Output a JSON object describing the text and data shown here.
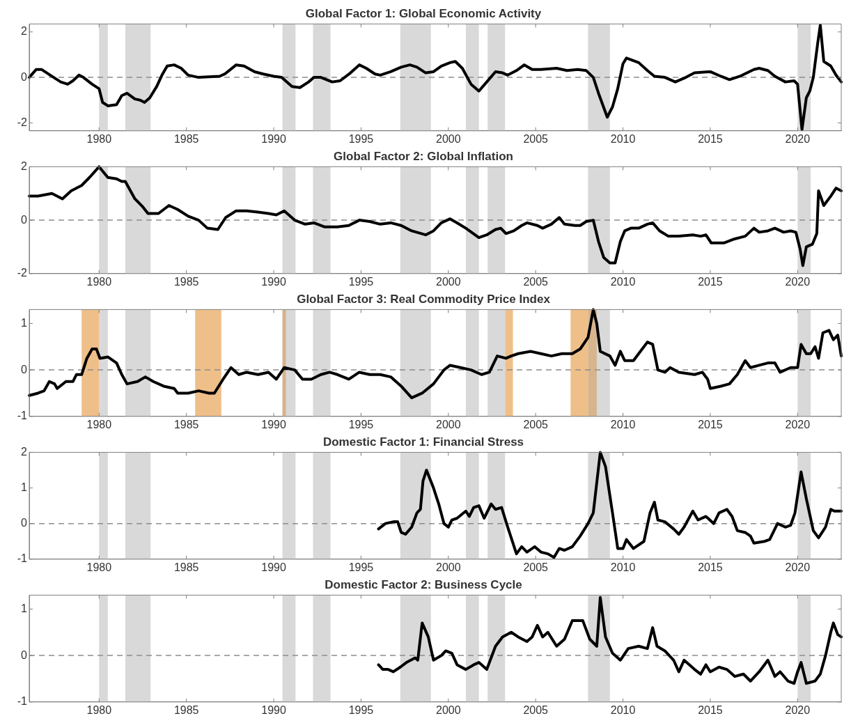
{
  "chart_data": [
    {
      "type": "line",
      "title": "Global Factor 1: Global Economic Activity",
      "xlim": [
        1976,
        2022.5
      ],
      "xticks": [
        1980,
        1985,
        1990,
        1995,
        2000,
        2005,
        2010,
        2015,
        2020
      ],
      "ylim": [
        -2.35,
        2.35
      ],
      "yticks": [
        -2,
        0,
        2
      ],
      "marker": "none",
      "grid": false,
      "bands": [
        {
          "axis": "x",
          "from": 1980.0,
          "to": 1980.5,
          "color": "#d9d9d9"
        },
        {
          "axis": "x",
          "from": 1981.5,
          "to": 1982.95,
          "color": "#d9d9d9"
        },
        {
          "axis": "x",
          "from": 1990.5,
          "to": 1991.25,
          "color": "#d9d9d9"
        },
        {
          "axis": "x",
          "from": 1992.25,
          "to": 1993.25,
          "color": "#d9d9d9"
        },
        {
          "axis": "x",
          "from": 1997.25,
          "to": 1999.0,
          "color": "#d9d9d9"
        },
        {
          "axis": "x",
          "from": 2001.0,
          "to": 2001.75,
          "color": "#d9d9d9"
        },
        {
          "axis": "x",
          "from": 2002.25,
          "to": 2003.25,
          "color": "#d9d9d9"
        },
        {
          "axis": "x",
          "from": 2008.0,
          "to": 2009.25,
          "color": "#d9d9d9"
        },
        {
          "axis": "x",
          "from": 2020.0,
          "to": 2020.75,
          "color": "#d9d9d9"
        }
      ],
      "ref_lines": [
        {
          "axis": "y",
          "value": 0,
          "color": "#8c8c8c",
          "line_style": "dashed"
        }
      ],
      "series": [
        {
          "color": "#000000",
          "x": [
            1976.0,
            1976.4,
            1976.7,
            1977.2,
            1977.8,
            1978.2,
            1978.5,
            1978.85,
            1979.1,
            1979.6,
            1980.0,
            1980.2,
            1980.5,
            1981.0,
            1981.3,
            1981.6,
            1982.05,
            1982.35,
            1982.6,
            1982.9,
            1983.3,
            1983.6,
            1983.9,
            1984.3,
            1984.7,
            1985.1,
            1985.7,
            1986.9,
            1987.2,
            1987.85,
            1988.3,
            1988.9,
            1989.4,
            1990.0,
            1990.45,
            1991.05,
            1991.5,
            1992.0,
            1992.3,
            1992.7,
            1993.35,
            1993.8,
            1994.4,
            1994.9,
            1995.3,
            1995.8,
            1996.1,
            1996.7,
            1997.3,
            1997.8,
            1998.2,
            1998.7,
            1999.15,
            1999.6,
            2000.1,
            2000.4,
            2000.8,
            2001.3,
            2001.75,
            2002.2,
            2002.7,
            2003.1,
            2003.4,
            2003.9,
            2004.35,
            2004.8,
            2005.3,
            2006.2,
            2006.8,
            2007.4,
            2007.9,
            2008.3,
            2008.6,
            2009.1,
            2009.4,
            2009.7,
            2010.0,
            2010.2,
            2010.9,
            2011.4,
            2011.8,
            2012.4,
            2013.0,
            2013.6,
            2014.1,
            2015.0,
            2015.6,
            2016.1,
            2016.7,
            2017.5,
            2017.8,
            2018.3,
            2018.7,
            2019.3,
            2019.8,
            2020.0,
            2020.25,
            2020.5,
            2020.7,
            2020.9,
            2021.15,
            2021.3,
            2021.5,
            2021.9,
            2022.2,
            2022.5
          ],
          "values": [
            0.0,
            0.35,
            0.35,
            0.1,
            -0.2,
            -0.3,
            -0.15,
            0.1,
            0.0,
            -0.3,
            -0.5,
            -1.1,
            -1.25,
            -1.2,
            -0.8,
            -0.7,
            -0.95,
            -1.0,
            -1.1,
            -0.9,
            -0.4,
            0.1,
            0.5,
            0.55,
            0.4,
            0.1,
            0.0,
            0.05,
            0.15,
            0.55,
            0.5,
            0.25,
            0.15,
            0.05,
            0.0,
            -0.4,
            -0.45,
            -0.2,
            0.0,
            0.0,
            -0.2,
            -0.15,
            0.2,
            0.55,
            0.4,
            0.15,
            0.1,
            0.25,
            0.45,
            0.55,
            0.45,
            0.2,
            0.25,
            0.5,
            0.65,
            0.7,
            0.4,
            -0.3,
            -0.6,
            -0.2,
            0.25,
            0.2,
            0.1,
            0.3,
            0.55,
            0.35,
            0.35,
            0.4,
            0.3,
            0.35,
            0.3,
            0.0,
            -0.7,
            -1.75,
            -1.3,
            -0.5,
            0.6,
            0.85,
            0.65,
            0.3,
            0.05,
            0.0,
            -0.2,
            0.0,
            0.2,
            0.25,
            0.05,
            -0.1,
            0.05,
            0.35,
            0.4,
            0.3,
            0.05,
            -0.2,
            -0.15,
            -0.3,
            -2.3,
            -0.9,
            -0.6,
            0.0,
            1.5,
            2.3,
            0.7,
            0.5,
            0.1,
            -0.2
          ]
        }
      ]
    },
    {
      "type": "line",
      "title": "Global Factor 2: Global Inflation",
      "xlim": [
        1976,
        2022.5
      ],
      "xticks": [
        1980,
        1985,
        1990,
        1995,
        2000,
        2005,
        2010,
        2015,
        2020
      ],
      "ylim": [
        -2,
        2
      ],
      "yticks": [
        -2,
        0,
        2
      ],
      "marker": "none",
      "grid": false,
      "bands": [
        {
          "axis": "x",
          "from": 1980.0,
          "to": 1980.5,
          "color": "#d9d9d9"
        },
        {
          "axis": "x",
          "from": 1981.5,
          "to": 1982.95,
          "color": "#d9d9d9"
        },
        {
          "axis": "x",
          "from": 1990.5,
          "to": 1991.25,
          "color": "#d9d9d9"
        },
        {
          "axis": "x",
          "from": 1992.25,
          "to": 1993.25,
          "color": "#d9d9d9"
        },
        {
          "axis": "x",
          "from": 1997.25,
          "to": 1999.0,
          "color": "#d9d9d9"
        },
        {
          "axis": "x",
          "from": 2001.0,
          "to": 2001.75,
          "color": "#d9d9d9"
        },
        {
          "axis": "x",
          "from": 2002.25,
          "to": 2003.25,
          "color": "#d9d9d9"
        },
        {
          "axis": "x",
          "from": 2008.0,
          "to": 2009.25,
          "color": "#d9d9d9"
        },
        {
          "axis": "x",
          "from": 2020.0,
          "to": 2020.75,
          "color": "#d9d9d9"
        }
      ],
      "ref_lines": [
        {
          "axis": "y",
          "value": 0,
          "color": "#8c8c8c",
          "line_style": "dashed"
        }
      ],
      "series": [
        {
          "color": "#000000",
          "x": [
            1976.0,
            1976.5,
            1977.3,
            1977.9,
            1978.4,
            1979.0,
            1979.45,
            1980.0,
            1980.5,
            1981.0,
            1981.3,
            1981.5,
            1982.05,
            1982.5,
            1982.8,
            1983.4,
            1984.0,
            1984.5,
            1985.1,
            1985.7,
            1986.2,
            1986.8,
            1987.25,
            1987.85,
            1988.45,
            1989.1,
            1989.7,
            1990.15,
            1990.6,
            1991.2,
            1991.8,
            1992.3,
            1992.9,
            1993.65,
            1994.3,
            1994.9,
            1995.5,
            1996.1,
            1996.7,
            1997.3,
            1997.9,
            1998.7,
            1999.15,
            1999.6,
            2000.1,
            2000.5,
            2001.0,
            2001.75,
            2002.2,
            2002.7,
            2003.0,
            2003.3,
            2003.75,
            2004.2,
            2004.5,
            2005.1,
            2005.4,
            2005.9,
            2006.35,
            2006.65,
            2007.25,
            2007.55,
            2007.9,
            2008.3,
            2008.6,
            2008.9,
            2009.25,
            2009.55,
            2009.85,
            2010.1,
            2010.45,
            2010.9,
            2011.4,
            2011.7,
            2012.1,
            2012.6,
            2013.2,
            2014.0,
            2014.45,
            2014.75,
            2015.05,
            2015.8,
            2016.4,
            2017.0,
            2017.5,
            2017.8,
            2018.3,
            2018.7,
            2019.2,
            2019.6,
            2019.9,
            2020.15,
            2020.3,
            2020.5,
            2020.85,
            2021.1,
            2021.2,
            2021.5,
            2021.9,
            2022.2,
            2022.5
          ],
          "values": [
            0.9,
            0.9,
            1.0,
            0.8,
            1.1,
            1.3,
            1.6,
            2.0,
            1.6,
            1.55,
            1.45,
            1.45,
            0.8,
            0.5,
            0.25,
            0.25,
            0.55,
            0.4,
            0.15,
            0.0,
            -0.3,
            -0.35,
            0.1,
            0.35,
            0.35,
            0.3,
            0.25,
            0.2,
            0.35,
            0.0,
            -0.15,
            -0.1,
            -0.25,
            -0.25,
            -0.2,
            0.0,
            -0.05,
            -0.15,
            -0.1,
            -0.2,
            -0.4,
            -0.55,
            -0.4,
            -0.1,
            0.05,
            -0.1,
            -0.3,
            -0.65,
            -0.55,
            -0.35,
            -0.3,
            -0.5,
            -0.4,
            -0.2,
            -0.1,
            -0.2,
            -0.3,
            -0.15,
            0.1,
            -0.15,
            -0.2,
            -0.2,
            -0.05,
            0.0,
            -0.8,
            -1.4,
            -1.6,
            -1.6,
            -0.8,
            -0.4,
            -0.3,
            -0.3,
            -0.15,
            -0.1,
            -0.4,
            -0.6,
            -0.6,
            -0.55,
            -0.6,
            -0.55,
            -0.85,
            -0.85,
            -0.7,
            -0.6,
            -0.3,
            -0.45,
            -0.4,
            -0.3,
            -0.45,
            -0.4,
            -0.45,
            -1.1,
            -1.7,
            -1.0,
            -0.9,
            -0.5,
            1.1,
            0.55,
            0.9,
            1.2,
            1.1
          ]
        }
      ]
    },
    {
      "type": "line",
      "title": "Global Factor 3: Real Commodity Price Index",
      "xlim": [
        1976,
        2022.5
      ],
      "xticks": [
        1980,
        1985,
        1990,
        1995,
        2000,
        2005,
        2010,
        2015,
        2020
      ],
      "ylim": [
        -1,
        1.3
      ],
      "yticks": [
        -1,
        0,
        1
      ],
      "marker": "none",
      "grid": false,
      "bands": [
        {
          "axis": "x",
          "from": 1980.0,
          "to": 1980.5,
          "color": "#d9d9d9"
        },
        {
          "axis": "x",
          "from": 1981.5,
          "to": 1982.95,
          "color": "#d9d9d9"
        },
        {
          "axis": "x",
          "from": 1990.5,
          "to": 1991.25,
          "color": "#d9d9d9"
        },
        {
          "axis": "x",
          "from": 1992.25,
          "to": 1993.25,
          "color": "#d9d9d9"
        },
        {
          "axis": "x",
          "from": 1997.25,
          "to": 1999.0,
          "color": "#d9d9d9"
        },
        {
          "axis": "x",
          "from": 2001.0,
          "to": 2001.75,
          "color": "#d9d9d9"
        },
        {
          "axis": "x",
          "from": 2002.25,
          "to": 2003.25,
          "color": "#d9d9d9"
        },
        {
          "axis": "x",
          "from": 2008.0,
          "to": 2009.25,
          "color": "#d9d9d9"
        },
        {
          "axis": "x",
          "from": 2020.0,
          "to": 2020.75,
          "color": "#d9d9d9"
        },
        {
          "axis": "x",
          "from": 1979.0,
          "to": 1980.0,
          "color": "#efbf8a"
        },
        {
          "axis": "x",
          "from": 1985.5,
          "to": 1987.0,
          "color": "#efbf8a"
        },
        {
          "axis": "x",
          "from": 1990.5,
          "to": 1990.7,
          "color": "#d8b48c"
        },
        {
          "axis": "x",
          "from": 2003.25,
          "to": 2003.7,
          "color": "#efbf8a"
        },
        {
          "axis": "x",
          "from": 2007.0,
          "to": 2008.0,
          "color": "#efbf8a"
        },
        {
          "axis": "x",
          "from": 2008.0,
          "to": 2008.5,
          "color": "#d8b48c"
        }
      ],
      "ref_lines": [
        {
          "axis": "y",
          "value": 0,
          "color": "#8c8c8c",
          "line_style": "dashed"
        }
      ],
      "series": [
        {
          "color": "#000000",
          "x": [
            1976.0,
            1976.5,
            1976.85,
            1977.15,
            1977.45,
            1977.6,
            1978.1,
            1978.5,
            1978.7,
            1979.0,
            1979.3,
            1979.6,
            1979.85,
            1980.05,
            1980.5,
            1981.0,
            1981.3,
            1981.6,
            1982.2,
            1982.65,
            1983.1,
            1983.7,
            1984.3,
            1984.5,
            1985.1,
            1985.7,
            1986.3,
            1986.6,
            1987.1,
            1987.55,
            1988.0,
            1988.45,
            1989.1,
            1989.7,
            1990.15,
            1990.6,
            1991.2,
            1991.65,
            1992.15,
            1992.7,
            1993.2,
            1993.65,
            1994.3,
            1994.9,
            1995.5,
            1996.1,
            1996.7,
            1997.3,
            1997.9,
            1998.5,
            1999.15,
            1999.75,
            2000.1,
            2000.7,
            2001.3,
            2001.9,
            2002.35,
            2002.8,
            2003.3,
            2003.6,
            2004.0,
            2004.7,
            2005.3,
            2005.9,
            2006.5,
            2007.1,
            2007.55,
            2008.0,
            2008.3,
            2008.5,
            2008.7,
            2009.25,
            2009.55,
            2009.85,
            2010.1,
            2010.6,
            2010.9,
            2011.4,
            2011.7,
            2012.0,
            2012.4,
            2012.7,
            2013.2,
            2014.1,
            2014.55,
            2014.85,
            2015.0,
            2015.6,
            2016.1,
            2016.55,
            2017.0,
            2017.3,
            2017.8,
            2018.3,
            2018.7,
            2019.0,
            2019.6,
            2020.0,
            2020.2,
            2020.5,
            2020.75,
            2021.0,
            2021.2,
            2021.45,
            2021.8,
            2022.05,
            2022.3,
            2022.5
          ],
          "values": [
            -0.55,
            -0.5,
            -0.45,
            -0.25,
            -0.3,
            -0.4,
            -0.25,
            -0.25,
            -0.1,
            -0.1,
            0.25,
            0.45,
            0.45,
            0.25,
            0.28,
            0.15,
            -0.1,
            -0.3,
            -0.25,
            -0.15,
            -0.25,
            -0.35,
            -0.4,
            -0.5,
            -0.5,
            -0.45,
            -0.5,
            -0.5,
            -0.2,
            0.05,
            -0.1,
            -0.05,
            -0.1,
            -0.05,
            -0.2,
            0.05,
            0.0,
            -0.2,
            -0.2,
            -0.1,
            -0.05,
            -0.1,
            -0.2,
            -0.05,
            -0.1,
            -0.1,
            -0.15,
            -0.35,
            -0.6,
            -0.5,
            -0.3,
            0.0,
            0.1,
            0.05,
            0.0,
            -0.1,
            -0.05,
            0.3,
            0.25,
            0.3,
            0.35,
            0.4,
            0.35,
            0.3,
            0.35,
            0.35,
            0.45,
            0.7,
            1.3,
            1.0,
            0.4,
            0.3,
            0.1,
            0.4,
            0.2,
            0.2,
            0.35,
            0.6,
            0.55,
            0.0,
            -0.05,
            0.05,
            -0.05,
            -0.1,
            -0.05,
            -0.2,
            -0.4,
            -0.35,
            -0.3,
            -0.1,
            0.2,
            0.05,
            0.1,
            0.15,
            0.15,
            -0.05,
            0.05,
            0.05,
            0.55,
            0.35,
            0.35,
            0.5,
            0.25,
            0.8,
            0.85,
            0.65,
            0.75,
            0.3
          ]
        }
      ]
    },
    {
      "type": "line",
      "title": "Domestic Factor 1: Financial Stress",
      "xlim": [
        1976,
        2022.5
      ],
      "xticks": [
        1980,
        1985,
        1990,
        1995,
        2000,
        2005,
        2010,
        2015,
        2020
      ],
      "ylim": [
        -1,
        2
      ],
      "yticks": [
        -1,
        0,
        1,
        2
      ],
      "marker": "none",
      "grid": false,
      "bands": [
        {
          "axis": "x",
          "from": 1980.0,
          "to": 1980.5,
          "color": "#d9d9d9"
        },
        {
          "axis": "x",
          "from": 1981.5,
          "to": 1982.95,
          "color": "#d9d9d9"
        },
        {
          "axis": "x",
          "from": 1990.5,
          "to": 1991.25,
          "color": "#d9d9d9"
        },
        {
          "axis": "x",
          "from": 1992.25,
          "to": 1993.25,
          "color": "#d9d9d9"
        },
        {
          "axis": "x",
          "from": 1997.25,
          "to": 1999.0,
          "color": "#d9d9d9"
        },
        {
          "axis": "x",
          "from": 2001.0,
          "to": 2001.75,
          "color": "#d9d9d9"
        },
        {
          "axis": "x",
          "from": 2002.25,
          "to": 2003.25,
          "color": "#d9d9d9"
        },
        {
          "axis": "x",
          "from": 2008.0,
          "to": 2009.25,
          "color": "#d9d9d9"
        },
        {
          "axis": "x",
          "from": 2020.0,
          "to": 2020.75,
          "color": "#d9d9d9"
        }
      ],
      "ref_lines": [
        {
          "axis": "y",
          "value": 0,
          "color": "#8c8c8c",
          "line_style": "dashed"
        }
      ],
      "series": [
        {
          "color": "#000000",
          "x": [
            1996.0,
            1996.4,
            1996.85,
            1997.1,
            1997.3,
            1997.55,
            1997.9,
            1998.2,
            1998.4,
            1998.55,
            1998.75,
            1999.15,
            1999.45,
            1999.75,
            2000.0,
            2000.2,
            2000.5,
            2001.0,
            2001.2,
            2001.45,
            2001.75,
            2002.05,
            2002.45,
            2002.7,
            2003.05,
            2003.4,
            2003.9,
            2004.2,
            2004.5,
            2004.95,
            2005.3,
            2005.7,
            2006.05,
            2006.35,
            2006.65,
            2007.1,
            2007.55,
            2008.0,
            2008.3,
            2008.7,
            2009.0,
            2009.4,
            2009.7,
            2010.0,
            2010.2,
            2010.6,
            2011.2,
            2011.55,
            2011.8,
            2012.0,
            2012.4,
            2012.9,
            2013.2,
            2013.5,
            2014.0,
            2014.3,
            2014.75,
            2015.2,
            2015.5,
            2015.95,
            2016.25,
            2016.55,
            2017.0,
            2017.3,
            2017.5,
            2018.1,
            2018.4,
            2018.85,
            2019.3,
            2019.6,
            2019.85,
            2020.2,
            2020.5,
            2020.9,
            2021.2,
            2021.6,
            2021.9,
            2022.1,
            2022.5
          ],
          "values": [
            -0.15,
            0.0,
            0.05,
            0.05,
            -0.25,
            -0.3,
            -0.1,
            0.3,
            0.4,
            1.2,
            1.5,
            1.0,
            0.55,
            0.0,
            -0.1,
            0.1,
            0.15,
            0.35,
            0.2,
            0.45,
            0.5,
            0.15,
            0.55,
            0.4,
            0.45,
            -0.1,
            -0.85,
            -0.65,
            -0.8,
            -0.65,
            -0.8,
            -0.85,
            -0.95,
            -0.7,
            -0.75,
            -0.65,
            -0.35,
            0.0,
            0.3,
            2.0,
            1.6,
            0.3,
            -0.7,
            -0.7,
            -0.45,
            -0.7,
            -0.5,
            0.3,
            0.6,
            0.1,
            0.05,
            -0.15,
            -0.3,
            -0.1,
            0.35,
            0.1,
            0.2,
            0.0,
            0.3,
            0.4,
            0.2,
            -0.2,
            -0.25,
            -0.35,
            -0.55,
            -0.5,
            -0.45,
            0.0,
            -0.1,
            -0.05,
            0.3,
            1.45,
            0.7,
            -0.2,
            -0.4,
            -0.1,
            0.4,
            0.35,
            0.35
          ]
        }
      ]
    },
    {
      "type": "line",
      "title": "Domestic Factor 2: Business Cycle",
      "xlim": [
        1976,
        2022.5
      ],
      "xticks": [
        1980,
        1985,
        1990,
        1995,
        2000,
        2005,
        2010,
        2015,
        2020
      ],
      "ylim": [
        -1,
        1.3
      ],
      "yticks": [
        -1,
        0,
        1
      ],
      "marker": "none",
      "grid": false,
      "bands": [
        {
          "axis": "x",
          "from": 1980.0,
          "to": 1980.5,
          "color": "#d9d9d9"
        },
        {
          "axis": "x",
          "from": 1981.5,
          "to": 1982.95,
          "color": "#d9d9d9"
        },
        {
          "axis": "x",
          "from": 1990.5,
          "to": 1991.25,
          "color": "#d9d9d9"
        },
        {
          "axis": "x",
          "from": 1992.25,
          "to": 1993.25,
          "color": "#d9d9d9"
        },
        {
          "axis": "x",
          "from": 1997.25,
          "to": 1999.0,
          "color": "#d9d9d9"
        },
        {
          "axis": "x",
          "from": 2001.0,
          "to": 2001.75,
          "color": "#d9d9d9"
        },
        {
          "axis": "x",
          "from": 2002.25,
          "to": 2003.25,
          "color": "#d9d9d9"
        },
        {
          "axis": "x",
          "from": 2008.0,
          "to": 2009.25,
          "color": "#d9d9d9"
        },
        {
          "axis": "x",
          "from": 2020.0,
          "to": 2020.75,
          "color": "#d9d9d9"
        }
      ],
      "ref_lines": [
        {
          "axis": "y",
          "value": 0,
          "color": "#8c8c8c",
          "line_style": "dashed"
        }
      ],
      "series": [
        {
          "color": "#000000",
          "x": [
            1996.0,
            1996.25,
            1996.55,
            1996.85,
            1997.25,
            1997.6,
            1998.1,
            1998.25,
            1998.5,
            1998.85,
            1999.15,
            1999.6,
            1999.85,
            2000.2,
            2000.5,
            2001.0,
            2001.45,
            2001.75,
            2002.2,
            2002.7,
            2003.1,
            2003.6,
            2004.0,
            2004.5,
            2004.8,
            2005.1,
            2005.4,
            2005.7,
            2006.2,
            2006.65,
            2007.1,
            2007.7,
            2008.1,
            2008.5,
            2008.7,
            2009.0,
            2009.4,
            2009.85,
            2010.3,
            2010.9,
            2011.4,
            2011.7,
            2011.95,
            2012.4,
            2012.9,
            2013.2,
            2013.5,
            2014.1,
            2014.45,
            2014.75,
            2015.0,
            2015.5,
            2015.95,
            2016.4,
            2016.9,
            2017.3,
            2017.8,
            2018.3,
            2018.7,
            2019.0,
            2019.45,
            2019.8,
            2020.0,
            2020.2,
            2020.5,
            2021.0,
            2021.3,
            2021.6,
            2021.9,
            2022.05,
            2022.3,
            2022.5
          ],
          "values": [
            -0.2,
            -0.3,
            -0.3,
            -0.35,
            -0.25,
            -0.15,
            -0.05,
            -0.1,
            0.7,
            0.4,
            -0.1,
            0.0,
            0.1,
            0.05,
            -0.2,
            -0.3,
            -0.2,
            -0.15,
            -0.3,
            0.2,
            0.4,
            0.5,
            0.4,
            0.3,
            0.4,
            0.65,
            0.4,
            0.5,
            0.2,
            0.35,
            0.75,
            0.75,
            0.35,
            0.2,
            1.25,
            0.4,
            0.05,
            -0.1,
            0.15,
            0.2,
            0.15,
            0.6,
            0.2,
            0.1,
            -0.1,
            -0.35,
            -0.1,
            -0.3,
            -0.4,
            -0.2,
            -0.35,
            -0.25,
            -0.3,
            -0.45,
            -0.4,
            -0.55,
            -0.35,
            -0.1,
            -0.45,
            -0.35,
            -0.55,
            -0.6,
            -0.35,
            -0.15,
            -0.6,
            -0.55,
            -0.4,
            0.0,
            0.5,
            0.7,
            0.45,
            0.4
          ]
        }
      ]
    }
  ]
}
